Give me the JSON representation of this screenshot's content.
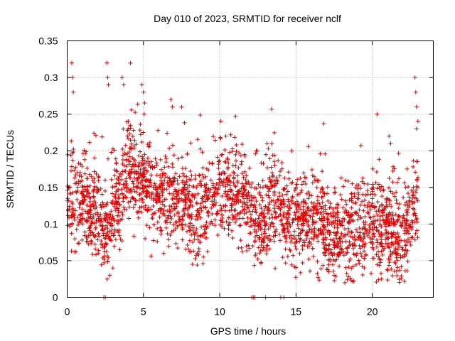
{
  "chart_data": {
    "type": "scatter",
    "title": "Day 010 of 2023, SRMTID for receiver nclf",
    "xlabel": "GPS time / hours",
    "ylabel": "SRMTID / TECUs",
    "xlim": [
      0,
      24
    ],
    "ylim": [
      0,
      0.35
    ],
    "x_ticks": [
      0,
      5,
      10,
      15,
      20
    ],
    "y_ticks": [
      0,
      0.05,
      0.1,
      0.15,
      0.2,
      0.25,
      0.3,
      0.35
    ],
    "x_tick_labels": [
      "0",
      "5",
      "10",
      "15",
      "20"
    ],
    "y_tick_labels": [
      "0",
      "0.05",
      "0.1",
      "0.15",
      "0.2",
      "0.25",
      "0.3",
      "0.35"
    ],
    "grid": true,
    "marker": "plus",
    "color": "#e00000",
    "trend": [
      [
        0.0,
        0.13
      ],
      [
        0.5,
        0.12
      ],
      [
        1.0,
        0.14
      ],
      [
        1.5,
        0.12
      ],
      [
        2.0,
        0.11
      ],
      [
        2.5,
        0.08
      ],
      [
        3.0,
        0.12
      ],
      [
        3.5,
        0.14
      ],
      [
        4.0,
        0.18
      ],
      [
        4.5,
        0.17
      ],
      [
        5.0,
        0.16
      ],
      [
        5.5,
        0.14
      ],
      [
        6.0,
        0.13
      ],
      [
        6.5,
        0.14
      ],
      [
        7.0,
        0.15
      ],
      [
        7.5,
        0.13
      ],
      [
        8.0,
        0.12
      ],
      [
        8.5,
        0.11
      ],
      [
        9.0,
        0.12
      ],
      [
        9.5,
        0.13
      ],
      [
        10.0,
        0.14
      ],
      [
        10.5,
        0.15
      ],
      [
        11.0,
        0.14
      ],
      [
        11.5,
        0.13
      ],
      [
        12.0,
        0.12
      ],
      [
        12.5,
        0.11
      ],
      [
        13.0,
        0.1
      ],
      [
        13.5,
        0.14
      ],
      [
        14.0,
        0.12
      ],
      [
        14.5,
        0.1
      ],
      [
        15.0,
        0.11
      ],
      [
        15.5,
        0.1
      ],
      [
        16.0,
        0.11
      ],
      [
        16.5,
        0.1
      ],
      [
        17.0,
        0.09
      ],
      [
        17.5,
        0.08
      ],
      [
        18.0,
        0.08
      ],
      [
        18.5,
        0.09
      ],
      [
        19.0,
        0.1
      ],
      [
        19.5,
        0.09
      ],
      [
        20.0,
        0.1
      ],
      [
        20.5,
        0.09
      ],
      [
        21.0,
        0.1
      ],
      [
        21.5,
        0.09
      ],
      [
        22.0,
        0.08
      ],
      [
        22.5,
        0.11
      ],
      [
        23.0,
        0.13
      ]
    ],
    "spikes": [
      [
        0.3,
        0.32
      ],
      [
        0.35,
        0.3
      ],
      [
        0.4,
        0.28
      ],
      [
        2.6,
        0.32
      ],
      [
        2.65,
        0.3
      ],
      [
        2.7,
        0.29
      ],
      [
        3.6,
        0.3
      ],
      [
        3.7,
        0.29
      ],
      [
        4.0,
        0.23
      ],
      [
        4.9,
        0.29
      ],
      [
        5.0,
        0.28
      ],
      [
        5.05,
        0.25
      ],
      [
        6.8,
        0.27
      ],
      [
        6.9,
        0.26
      ],
      [
        10.4,
        0.22
      ],
      [
        12.4,
        0.2
      ],
      [
        13.1,
        0.21
      ],
      [
        21.1,
        0.22
      ],
      [
        21.2,
        0.21
      ],
      [
        22.8,
        0.3
      ],
      [
        22.85,
        0.28
      ],
      [
        22.9,
        0.26
      ],
      [
        22.9,
        0.23
      ],
      [
        2.8,
        0.03
      ],
      [
        3.0,
        0.04
      ],
      [
        17.5,
        0.03
      ],
      [
        18.2,
        0.02
      ]
    ],
    "zero_points": [
      2.4,
      2.5,
      12.1,
      12.2,
      12.3,
      13.0,
      14.0,
      14.2
    ],
    "n_points": 2600,
    "seed": 10
  }
}
